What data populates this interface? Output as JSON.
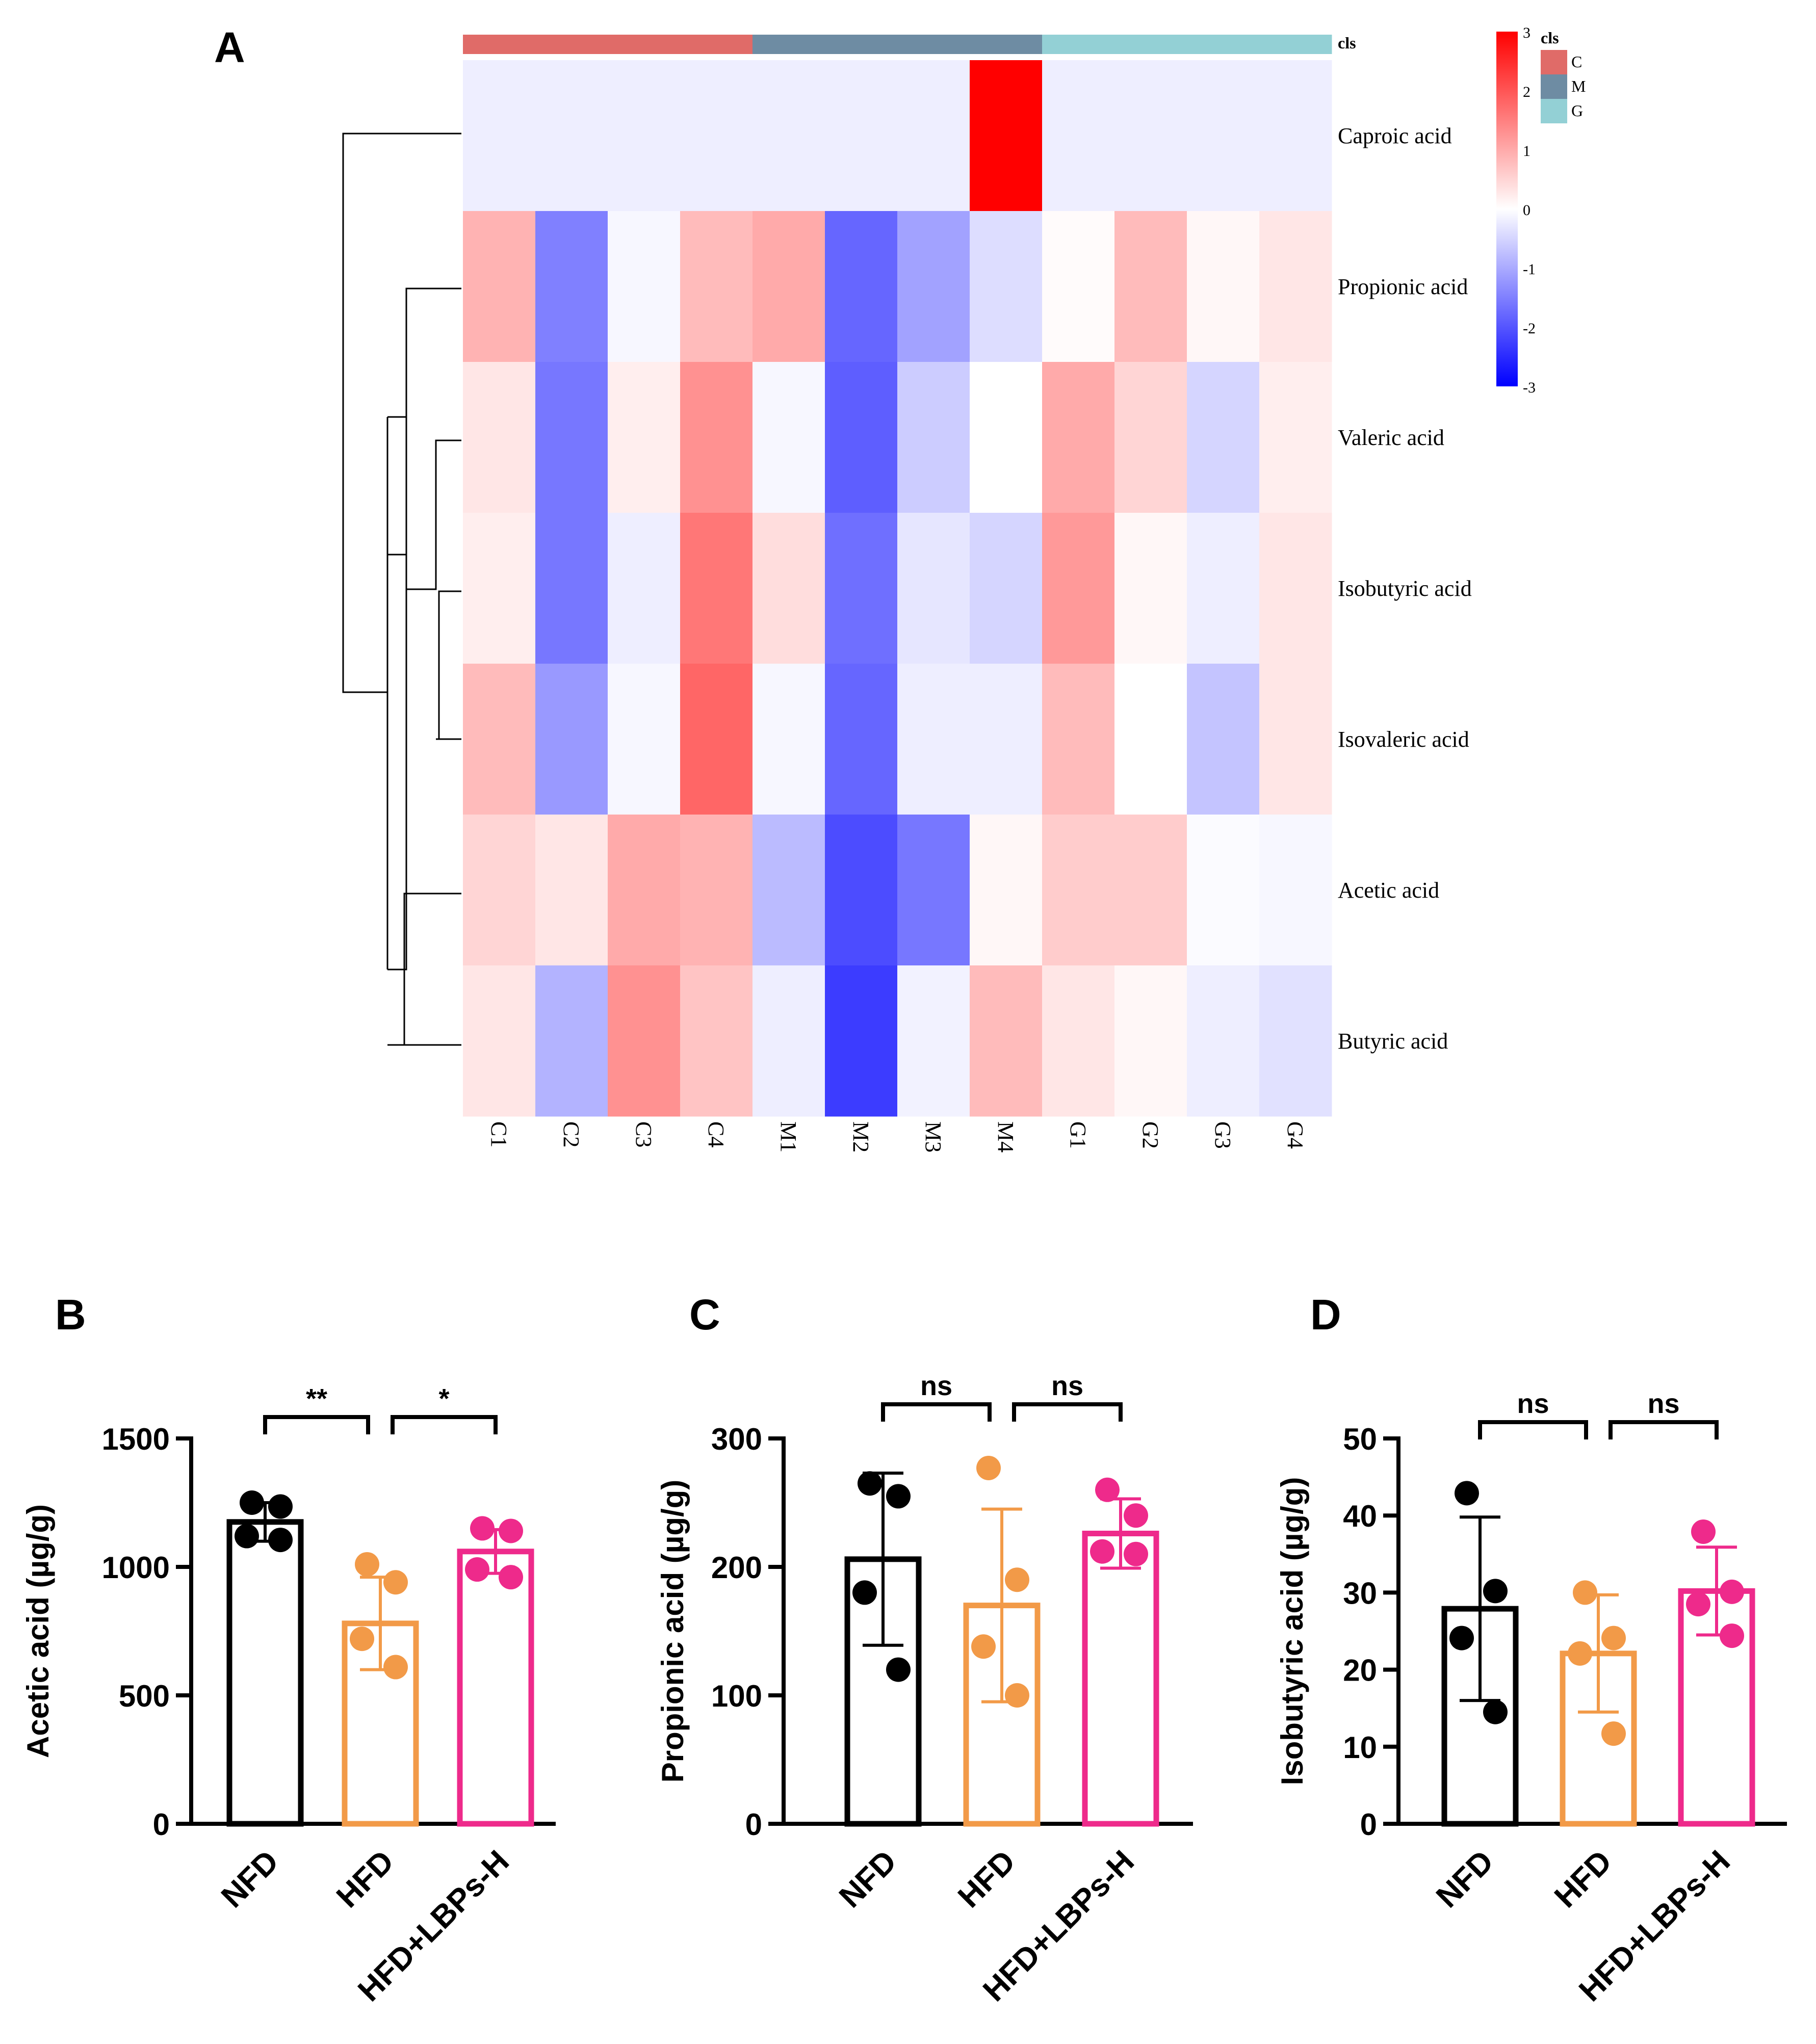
{
  "panels": {
    "A": "A",
    "B": "B",
    "C": "C",
    "D": "D"
  },
  "chart_data": [
    {
      "type": "heatmap",
      "panel": "A",
      "title": "",
      "columns": [
        "C1",
        "C2",
        "C3",
        "C4",
        "M1",
        "M2",
        "M3",
        "M4",
        "G1",
        "G2",
        "G3",
        "G4"
      ],
      "column_groups": [
        "C",
        "C",
        "C",
        "C",
        "M",
        "M",
        "M",
        "M",
        "G",
        "G",
        "G",
        "G"
      ],
      "rows": [
        "Caproic acid",
        "Propionic acid",
        "Valeric acid",
        "Isobutyric acid",
        "Isovaleric acid",
        "Acetic acid",
        "Butyric acid"
      ],
      "values": [
        [
          -0.2,
          -0.2,
          -0.2,
          -0.2,
          -0.2,
          -0.2,
          -0.2,
          3.0,
          -0.2,
          -0.2,
          -0.2,
          -0.2
        ],
        [
          0.9,
          -1.5,
          -0.1,
          0.8,
          1.0,
          -1.8,
          -1.1,
          -0.4,
          0.05,
          0.8,
          0.1,
          0.3
        ],
        [
          0.3,
          -1.6,
          0.2,
          1.3,
          -0.1,
          -1.9,
          -0.6,
          0.0,
          1.0,
          0.5,
          -0.5,
          0.2
        ],
        [
          0.2,
          -1.6,
          -0.2,
          1.6,
          0.4,
          -1.7,
          -0.3,
          -0.5,
          1.2,
          0.1,
          -0.2,
          0.3
        ],
        [
          0.8,
          -1.2,
          -0.1,
          1.8,
          -0.1,
          -1.8,
          -0.2,
          -0.2,
          0.8,
          0.0,
          -0.7,
          0.3
        ],
        [
          0.5,
          0.3,
          1.0,
          0.9,
          -0.8,
          -2.1,
          -1.6,
          0.1,
          0.6,
          0.6,
          -0.05,
          -0.1
        ],
        [
          0.3,
          -0.9,
          1.3,
          0.7,
          -0.2,
          -2.3,
          -0.15,
          0.8,
          0.3,
          0.1,
          -0.2,
          -0.35
        ]
      ],
      "color_scale": {
        "min": -3,
        "max": 3,
        "low": "#0000ff",
        "mid": "#ffffff",
        "high": "#ff0000",
        "ticks": [
          "3",
          "2",
          "1",
          "0",
          "-1",
          "-2",
          "-3"
        ]
      },
      "legend": {
        "title": "cls",
        "entries": [
          {
            "label": "C",
            "color": "#e06b68"
          },
          {
            "label": "M",
            "color": "#6e8ca3"
          },
          {
            "label": "G",
            "color": "#93d0d5"
          }
        ]
      },
      "annotation_label": "cls"
    },
    {
      "type": "bar",
      "panel": "B",
      "categories": [
        "NFD",
        "HFD",
        "HFD+LBPs-H"
      ],
      "colors": [
        "#000000",
        "#f29a48",
        "#ee2a8b"
      ],
      "values": [
        1175,
        780,
        1060
      ],
      "sd": [
        75,
        180,
        85
      ],
      "points": [
        [
          1250,
          1235,
          1120,
          1105
        ],
        [
          1010,
          940,
          720,
          610
        ],
        [
          1150,
          1140,
          990,
          960
        ]
      ],
      "ylabel": "Acetic acid (µg/g)",
      "ylim": [
        0,
        1500
      ],
      "yticks": [
        "0",
        "500",
        "1000",
        "1500"
      ],
      "ytick_values": [
        0,
        500,
        1000,
        1500
      ],
      "significance": [
        {
          "from": 0,
          "to": 1,
          "label": "**"
        },
        {
          "from": 1,
          "to": 2,
          "label": "*"
        }
      ]
    },
    {
      "type": "bar",
      "panel": "C",
      "categories": [
        "NFD",
        "HFD",
        "HFD+LBPs-H"
      ],
      "colors": [
        "#000000",
        "#f29a48",
        "#ee2a8b"
      ],
      "values": [
        206,
        170,
        226
      ],
      "sd": [
        67,
        75,
        27
      ],
      "points": [
        [
          265,
          255,
          180,
          120
        ],
        [
          277,
          190,
          138,
          100
        ],
        [
          260,
          240,
          212,
          210
        ]
      ],
      "ylabel": "Propionic acid (µg/g)",
      "ylim": [
        0,
        300
      ],
      "yticks": [
        "0",
        "100",
        "200",
        "300"
      ],
      "ytick_values": [
        0,
        100,
        200,
        300
      ],
      "significance": [
        {
          "from": 0,
          "to": 1,
          "label": "ns"
        },
        {
          "from": 1,
          "to": 2,
          "label": "ns"
        }
      ]
    },
    {
      "type": "bar",
      "panel": "D",
      "categories": [
        "NFD",
        "HFD",
        "HFD+LBPs-H"
      ],
      "colors": [
        "#000000",
        "#f29a48",
        "#ee2a8b"
      ],
      "values": [
        27.9,
        22.1,
        30.2
      ],
      "sd": [
        11.9,
        7.6,
        5.7
      ],
      "points": [
        [
          42.9,
          30.2,
          24.1,
          14.5
        ],
        [
          30.0,
          24.1,
          22.1,
          11.7
        ],
        [
          37.9,
          30.1,
          28.5,
          24.4
        ]
      ],
      "ylabel": "Isobutyric acid (µg/g)",
      "ylim": [
        0,
        50
      ],
      "yticks": [
        "0",
        "10",
        "20",
        "30",
        "40",
        "50"
      ],
      "ytick_values": [
        0,
        10,
        20,
        30,
        40,
        50
      ],
      "significance": [
        {
          "from": 0,
          "to": 1,
          "label": "ns"
        },
        {
          "from": 1,
          "to": 2,
          "label": "ns"
        }
      ]
    }
  ]
}
